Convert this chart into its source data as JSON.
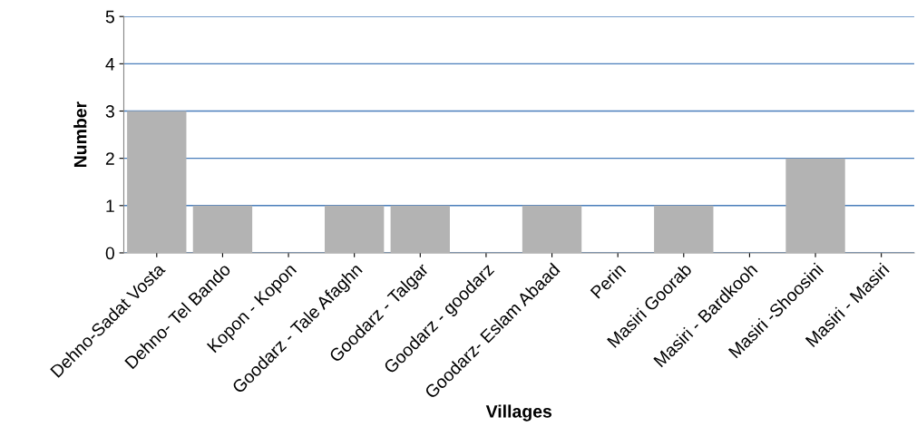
{
  "chart_data": {
    "type": "bar",
    "xlabel": "Villages",
    "ylabel": "Number",
    "categories": [
      "Dehno-Sadat Vosta",
      "Dehno- Tel Bando",
      "Kopon - Kopon",
      "Goodarz - Tale Afaghn",
      "Goodarz - Talgar",
      "Goodarz - goodarz",
      "Goodarz- Eslam Abaad",
      "Perin",
      "Masiri Goorab",
      "Masiri - Bardkooh",
      "Masiri -Shoosini",
      "Masiri - Masiri"
    ],
    "values": [
      3,
      1,
      0,
      1,
      1,
      0,
      1,
      0,
      1,
      0,
      2,
      0
    ],
    "color": "#b3b3b3",
    "ylim": [
      0,
      5
    ],
    "yticks": [
      0,
      1,
      2,
      3,
      4,
      5
    ],
    "grid": "y",
    "legend": false
  }
}
